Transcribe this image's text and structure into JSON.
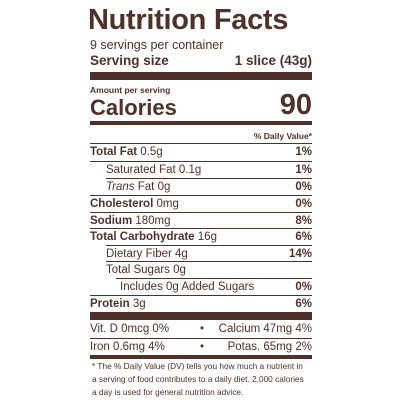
{
  "title": "Nutrition Facts",
  "servings": "9 servings per container",
  "serving_size": {
    "label": "Serving size",
    "value": "1 slice (43g)"
  },
  "amount_per_serving": "Amount per serving",
  "calories": {
    "label": "Calories",
    "value": 90
  },
  "daily_value_header": "% Daily Value*",
  "nutrients": [
    {
      "label": "Total Fat",
      "amount": "0.5g",
      "dv": "1%"
    },
    {
      "label": "Saturated Fat",
      "amount": "0.1g",
      "dv": "1%"
    },
    {
      "label_italic": "Trans",
      "label": "Fat",
      "amount": "0g",
      "dv": "0%"
    },
    {
      "label": "Cholesterol",
      "amount": "0mg",
      "dv": "0%"
    },
    {
      "label": "Sodium",
      "amount": "180mg",
      "dv": "8%"
    },
    {
      "label": "Total Carbohydrate",
      "amount": "16g",
      "dv": "6%"
    },
    {
      "label": "Dietary Fiber",
      "amount": "4g",
      "dv": "14%"
    },
    {
      "label": "Total Sugars",
      "amount": "0g"
    },
    {
      "label": "Includes 0g Added Sugars",
      "dv": "0%"
    },
    {
      "label": "Protein",
      "amount": "3g",
      "dv": "6%"
    }
  ],
  "vitamins": [
    [
      "Vit. D 0mcg 0%",
      "Calcium 47mg 4%"
    ],
    [
      "Iron 0.6mg 4%",
      "Potas. 65mg 2%"
    ]
  ],
  "footnote": [
    "* The % Daily Value (DV) tells you how much a nutrient in",
    "a serving of food contributes to a daily diet. 2,000 calories",
    "a day is used for general nutrition advice."
  ]
}
